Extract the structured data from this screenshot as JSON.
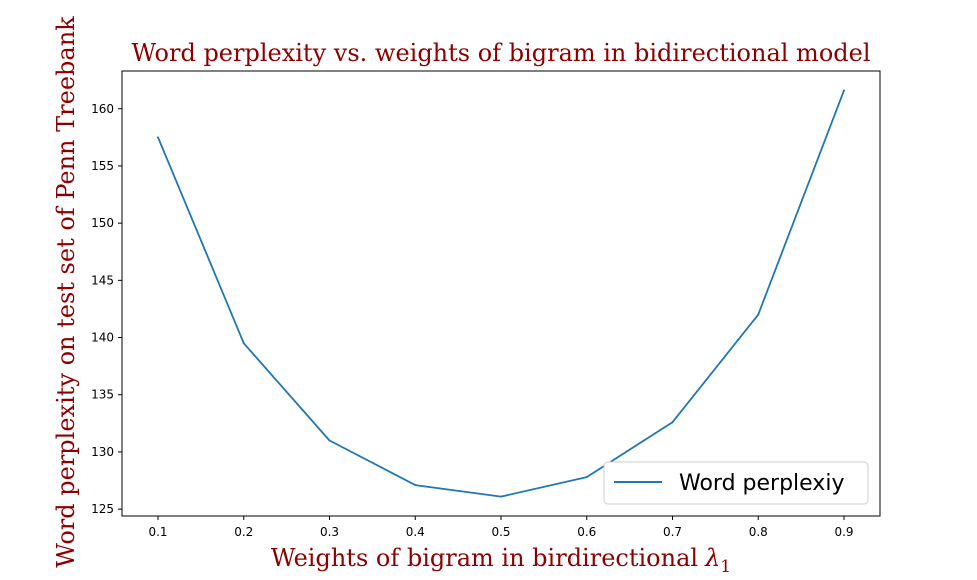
{
  "chart_data": {
    "type": "line",
    "title": "Word perplexity vs. weights of bigram in bidirectional model",
    "xlabel": "Weights of bigram in birdirectional",
    "xlabel_symbol": "λ",
    "xlabel_subscript": "1",
    "ylabel": "Word perplexity on test set of Penn Treebank",
    "xlim": [
      0.058,
      0.942
    ],
    "ylim": [
      124.4,
      163.3
    ],
    "xticks": [
      "0.1",
      "0.2",
      "0.3",
      "0.4",
      "0.5",
      "0.6",
      "0.7",
      "0.8",
      "0.9"
    ],
    "yticks": [
      "125",
      "130",
      "135",
      "140",
      "145",
      "150",
      "155",
      "160"
    ],
    "x": [
      0.1,
      0.2,
      0.3,
      0.4,
      0.5,
      0.6,
      0.7,
      0.8,
      0.9
    ],
    "series": [
      {
        "name": "Word perplexiy",
        "color": "#1f77b4",
        "values": [
          157.5,
          139.5,
          131.0,
          127.1,
          126.1,
          127.8,
          132.6,
          142.0,
          161.6
        ]
      }
    ],
    "legend_position": "lower-right",
    "grid": false
  }
}
